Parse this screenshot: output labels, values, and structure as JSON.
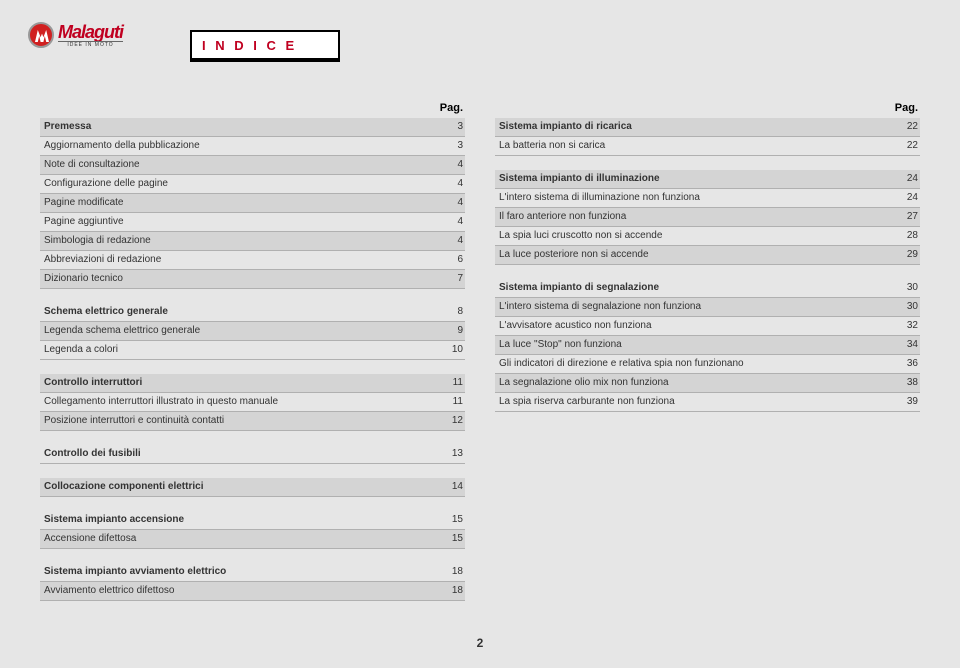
{
  "brand": {
    "name": "Malaguti",
    "tagline": "IDEE IN MOTO"
  },
  "pageTitle": "I N D I C E",
  "pagLabel": "Pag.",
  "pageNumber": "2",
  "left": [
    {
      "t": "row",
      "label": "Premessa",
      "page": "3",
      "bold": true,
      "stripe": true
    },
    {
      "t": "row",
      "label": "Aggiornamento della pubblicazione",
      "page": "3",
      "stripe": false
    },
    {
      "t": "row",
      "label": "Note di consultazione",
      "page": "4",
      "stripe": true
    },
    {
      "t": "row",
      "label": "Configurazione delle pagine",
      "page": "4",
      "stripe": false
    },
    {
      "t": "row",
      "label": "Pagine modificate",
      "page": "4",
      "stripe": true
    },
    {
      "t": "row",
      "label": "Pagine aggiuntive",
      "page": "4",
      "stripe": false
    },
    {
      "t": "row",
      "label": "Simbologia di redazione",
      "page": "4",
      "stripe": true
    },
    {
      "t": "row",
      "label": "Abbreviazioni di redazione",
      "page": "6",
      "stripe": false
    },
    {
      "t": "row",
      "label": "Dizionario tecnico",
      "page": "7",
      "stripe": true
    },
    {
      "t": "gap"
    },
    {
      "t": "row",
      "label": "Schema elettrico generale",
      "page": "8",
      "bold": true,
      "stripe": false
    },
    {
      "t": "row",
      "label": "Legenda schema elettrico generale",
      "page": "9",
      "stripe": true
    },
    {
      "t": "row",
      "label": "Legenda a colori",
      "page": "10",
      "stripe": false
    },
    {
      "t": "gap"
    },
    {
      "t": "row",
      "label": "Controllo interruttori",
      "page": "11",
      "bold": true,
      "stripe": true
    },
    {
      "t": "row",
      "label": "Collegamento interruttori illustrato in questo manuale",
      "page": "11",
      "stripe": false
    },
    {
      "t": "row",
      "label": "Posizione interruttori e continuità contatti",
      "page": "12",
      "stripe": true
    },
    {
      "t": "gap"
    },
    {
      "t": "row",
      "label": "Controllo dei fusibili",
      "page": "13",
      "bold": true,
      "stripe": false
    },
    {
      "t": "gap"
    },
    {
      "t": "row",
      "label": "Collocazione componenti elettrici",
      "page": "14",
      "bold": true,
      "stripe": true
    },
    {
      "t": "gap"
    },
    {
      "t": "row",
      "label": "Sistema impianto accensione",
      "page": "15",
      "bold": true,
      "stripe": false
    },
    {
      "t": "row",
      "label": "Accensione difettosa",
      "page": "15",
      "stripe": true
    },
    {
      "t": "gap"
    },
    {
      "t": "row",
      "label": "Sistema impianto avviamento elettrico",
      "page": "18",
      "bold": true,
      "stripe": false
    },
    {
      "t": "row",
      "label": "Avviamento elettrico difettoso",
      "page": "18",
      "stripe": true
    }
  ],
  "right": [
    {
      "t": "row",
      "label": "Sistema impianto di ricarica",
      "page": "22",
      "bold": true,
      "stripe": true
    },
    {
      "t": "row",
      "label": "La batteria non si carica",
      "page": "22",
      "stripe": false
    },
    {
      "t": "gap"
    },
    {
      "t": "row",
      "label": "Sistema impianto di illuminazione",
      "page": "24",
      "bold": true,
      "stripe": true
    },
    {
      "t": "row",
      "label": "L'intero sistema di illuminazione non funziona",
      "page": "24",
      "stripe": false
    },
    {
      "t": "row",
      "label": "Il faro anteriore non funziona",
      "page": "27",
      "stripe": true
    },
    {
      "t": "row",
      "label": "La spia luci cruscotto non si accende",
      "page": "28",
      "stripe": false
    },
    {
      "t": "row",
      "label": "La luce posteriore non si accende",
      "page": "29",
      "stripe": true
    },
    {
      "t": "gap"
    },
    {
      "t": "row",
      "label": "Sistema impianto di segnalazione",
      "page": "30",
      "bold": true,
      "stripe": false
    },
    {
      "t": "row",
      "label": "L'intero sistema di segnalazione non funziona",
      "page": "30",
      "stripe": true
    },
    {
      "t": "row",
      "label": "L'avvisatore acustico non funziona",
      "page": "32",
      "stripe": false
    },
    {
      "t": "row",
      "label": "La luce \"Stop\" non funziona",
      "page": "34",
      "stripe": true
    },
    {
      "t": "row",
      "label": "Gli indicatori di direzione e relativa spia non funzionano",
      "page": "36",
      "stripe": false
    },
    {
      "t": "row",
      "label": "La segnalazione olio mix non funziona",
      "page": "38",
      "stripe": true
    },
    {
      "t": "row",
      "label": "La spia riserva carburante non funziona",
      "page": "39",
      "stripe": false
    }
  ]
}
